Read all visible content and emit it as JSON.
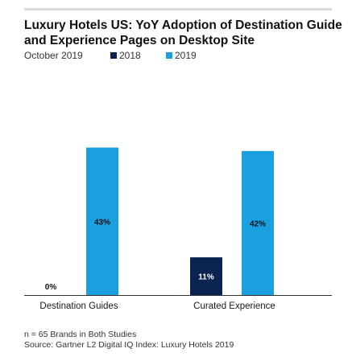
{
  "chart_data": {
    "type": "bar",
    "title": "Luxury Hotels US: YoY Adoption of Destination Guide and Experience Pages on Desktop Site",
    "subtitle": "October 2019",
    "categories": [
      "Destination Guides",
      "Curated Experience"
    ],
    "series": [
      {
        "name": "2018",
        "values": [
          0,
          11
        ],
        "color": "#0b2350"
      },
      {
        "name": "2019",
        "values": [
          43,
          42
        ],
        "color": "#1aa0e0"
      }
    ],
    "data_labels": [
      [
        "0%",
        "11%"
      ],
      [
        "43%",
        "42%"
      ]
    ],
    "ylim": [
      0,
      45
    ],
    "grid": false,
    "legend": "top-left",
    "xlabel": "",
    "ylabel": ""
  },
  "footnotes": [
    "n = 65 Brands in Both Studies",
    "Source: Gartner L2 Digital IQ Index: Luxury Hotels 2019"
  ],
  "colors": {
    "rule": "#d9d9d9",
    "axis": "#333333"
  }
}
